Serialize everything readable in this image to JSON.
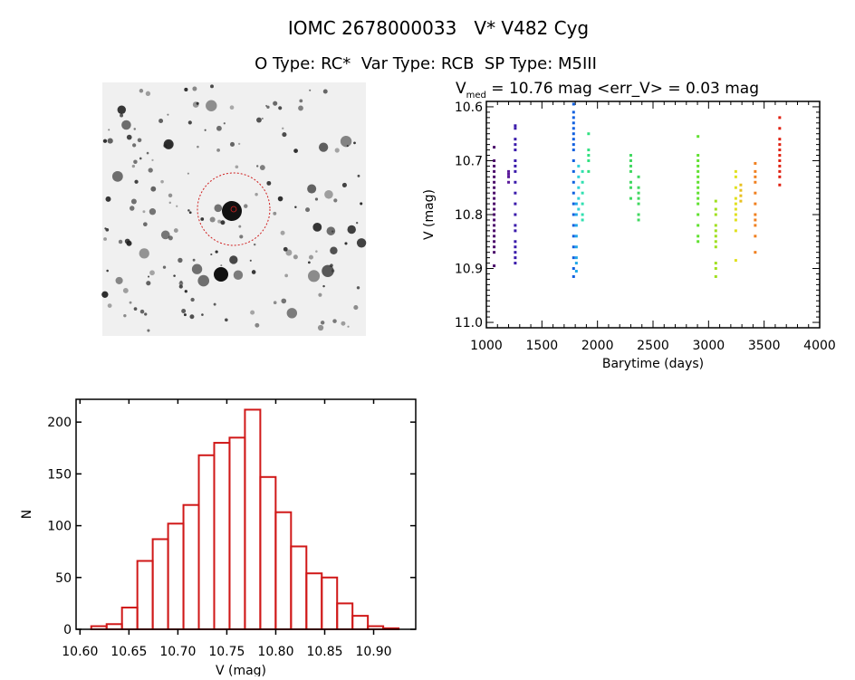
{
  "title": "IOMC 2678000033   V* V482 Cyg",
  "subtitle": "O Type: RC*  Var Type: RCB  SP Type: M5III",
  "chart_data": [
    {
      "type": "image",
      "description_label": "",
      "marker_color": "#d02020"
    },
    {
      "type": "scatter",
      "title_prefix": "V",
      "title_sub": "med",
      "title_rest": " = 10.76 mag <err_V> = 0.03 mag",
      "xlabel": "Barytime (days)",
      "ylabel": "V (mag)",
      "xlim": [
        1000,
        4000
      ],
      "ylim": [
        11.01,
        10.59
      ],
      "y_inverted": true,
      "xticks": [
        1000,
        1500,
        2000,
        2500,
        3000,
        3500,
        4000
      ],
      "yticks": [
        "10.6",
        "10.7",
        "10.8",
        "10.9",
        "11.0"
      ],
      "series": [
        {
          "color": "#4a0a6a",
          "x": 1070,
          "y": [
            10.7,
            10.71,
            10.72,
            10.73,
            10.74,
            10.75,
            10.76,
            10.77,
            10.78,
            10.79,
            10.8,
            10.81,
            10.82,
            10.83,
            10.84,
            10.85,
            10.86,
            10.87,
            10.675,
            10.895
          ]
        },
        {
          "color": "#5a1a9a",
          "x": 1200,
          "y": [
            10.72,
            10.725,
            10.73,
            10.74
          ]
        },
        {
          "color": "#3a1aaa",
          "x": 1260,
          "y": [
            10.635,
            10.64,
            10.66,
            10.67,
            10.68,
            10.7,
            10.71,
            10.72,
            10.74,
            10.76,
            10.78,
            10.8,
            10.82,
            10.83,
            10.85,
            10.86,
            10.87,
            10.88,
            10.89
          ]
        },
        {
          "color": "#1060e0",
          "x": 1785,
          "y": [
            10.595,
            10.61,
            10.62,
            10.63,
            10.64,
            10.65,
            10.66,
            10.67,
            10.68,
            10.7,
            10.72,
            10.74,
            10.76,
            10.78,
            10.8,
            10.82,
            10.84,
            10.86,
            10.88,
            10.9,
            10.915
          ]
        },
        {
          "color": "#20a8e8",
          "x": 1810,
          "y": [
            10.78,
            10.8,
            10.82,
            10.84,
            10.86,
            10.88,
            10.89,
            10.905
          ]
        },
        {
          "color": "#30d0d8",
          "x": 1830,
          "y": [
            10.71,
            10.73,
            10.75,
            10.77,
            10.79
          ]
        },
        {
          "color": "#30e0b0",
          "x": 1865,
          "y": [
            10.72,
            10.74,
            10.76,
            10.78,
            10.8,
            10.81
          ]
        },
        {
          "color": "#30e080",
          "x": 1920,
          "y": [
            10.65,
            10.68,
            10.69,
            10.7,
            10.72
          ]
        },
        {
          "color": "#40d860",
          "x": 2300,
          "y": [
            10.69,
            10.7,
            10.71,
            10.72,
            10.74,
            10.75,
            10.77
          ]
        },
        {
          "color": "#40d860",
          "x": 2370,
          "y": [
            10.73,
            10.75,
            10.76,
            10.77,
            10.78,
            10.8,
            10.81
          ]
        },
        {
          "color": "#60e030",
          "x": 2905,
          "y": [
            10.655,
            10.69,
            10.7,
            10.71,
            10.72,
            10.73,
            10.74,
            10.75,
            10.76,
            10.77,
            10.78,
            10.8,
            10.82,
            10.84,
            10.85
          ]
        },
        {
          "color": "#a0e020",
          "x": 3065,
          "y": [
            10.775,
            10.79,
            10.8,
            10.82,
            10.83,
            10.84,
            10.85,
            10.86,
            10.89,
            10.9,
            10.915
          ]
        },
        {
          "color": "#e0e020",
          "x": 3245,
          "y": [
            10.72,
            10.73,
            10.75,
            10.77,
            10.78,
            10.79,
            10.8,
            10.81,
            10.83,
            10.885
          ]
        },
        {
          "color": "#e8c020",
          "x": 3290,
          "y": [
            10.745,
            10.755,
            10.765,
            10.775
          ]
        },
        {
          "color": "#f08020",
          "x": 3420,
          "y": [
            10.705,
            10.72,
            10.73,
            10.74,
            10.76,
            10.78,
            10.8,
            10.81,
            10.82,
            10.84,
            10.87
          ]
        },
        {
          "color": "#e02010",
          "x": 3640,
          "y": [
            10.62,
            10.64,
            10.66,
            10.67,
            10.68,
            10.69,
            10.7,
            10.71,
            10.72,
            10.73,
            10.745
          ]
        }
      ]
    },
    {
      "type": "bar",
      "xlabel": "V (mag)",
      "ylabel": "N",
      "xlim": [
        10.596,
        10.943
      ],
      "ylim": [
        0,
        222
      ],
      "xticks": [
        "10.60",
        "10.65",
        "10.70",
        "10.75",
        "10.80",
        "10.85",
        "10.90"
      ],
      "yticks": [
        "0",
        "50",
        "100",
        "150",
        "200"
      ],
      "bin_start": 10.6115,
      "bin_width": 0.0157,
      "values": [
        3,
        5,
        21,
        66,
        87,
        102,
        120,
        168,
        180,
        185,
        212,
        147,
        113,
        80,
        54,
        50,
        25,
        13,
        3,
        1
      ],
      "color": "#d01818"
    }
  ]
}
